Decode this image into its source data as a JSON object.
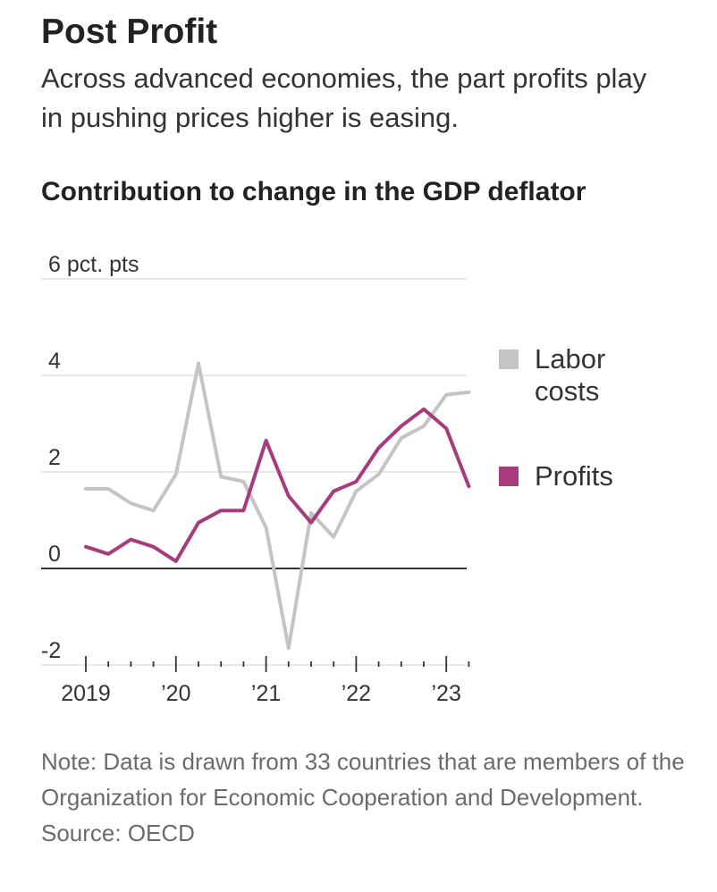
{
  "header": {
    "title": "Post Profit",
    "subtitle": "Across advanced economies, the part profits play in pushing prices higher is easing.",
    "chart_title": "Contribution to change in the GDP deflator"
  },
  "footer": {
    "note": "Note: Data is drawn from 33 countries that are members of the Organization for Economic Cooperation and Development.",
    "source": "Source: OECD"
  },
  "chart_data": {
    "type": "line",
    "title": "Contribution to change in the GDP deflator",
    "ylabel": "",
    "xlabel": "",
    "ylim": [
      -2,
      6
    ],
    "yticks": [
      -2,
      0,
      2,
      4,
      6
    ],
    "ytick_labels": [
      "-2",
      "0",
      "2",
      "4",
      "6 pct. pts"
    ],
    "x": [
      "2019 Q1",
      "2019 Q2",
      "2019 Q3",
      "2019 Q4",
      "2020 Q1",
      "2020 Q2",
      "2020 Q3",
      "2020 Q4",
      "2021 Q1",
      "2021 Q2",
      "2021 Q3",
      "2021 Q4",
      "2022 Q1",
      "2022 Q2",
      "2022 Q3",
      "2022 Q4",
      "2023 Q1",
      "2023 Q2"
    ],
    "xtick_labels": [
      {
        "index": 0,
        "label": "2019"
      },
      {
        "index": 4,
        "label": "’20"
      },
      {
        "index": 8,
        "label": "’21"
      },
      {
        "index": 12,
        "label": "’22"
      },
      {
        "index": 16,
        "label": "’23"
      }
    ],
    "legend_position": "right",
    "grid": true,
    "series": [
      {
        "name": "Labor costs",
        "color": "#c4c4c4",
        "values": [
          1.65,
          1.65,
          1.35,
          1.2,
          1.95,
          4.25,
          1.9,
          1.8,
          0.85,
          -1.65,
          1.15,
          0.65,
          1.6,
          1.95,
          2.7,
          2.95,
          3.6,
          3.65
        ]
      },
      {
        "name": "Profits",
        "color": "#a83b7c",
        "values": [
          0.45,
          0.3,
          0.6,
          0.45,
          0.15,
          0.95,
          1.2,
          1.2,
          2.65,
          1.5,
          0.95,
          1.6,
          1.8,
          2.5,
          2.95,
          3.3,
          2.9,
          1.7
        ]
      }
    ]
  }
}
